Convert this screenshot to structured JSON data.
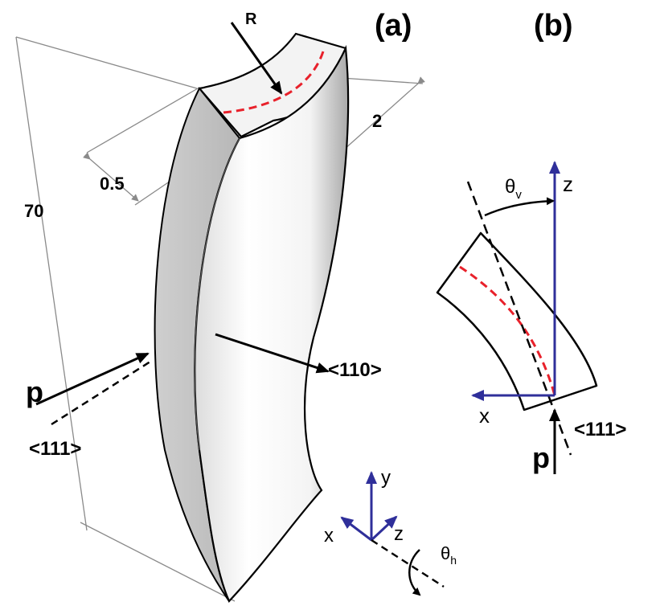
{
  "panel_a": {
    "label": "(a)",
    "radius_label": "R",
    "dim_length": "70",
    "dim_width": "2",
    "dim_thickness": "0.5",
    "beam_label": "p",
    "beam_direction": "<111>",
    "face_direction": "<110>",
    "axes": {
      "y": "y",
      "x": "x",
      "z": "z"
    },
    "rotation_label": "θh",
    "rotation_main": "θ",
    "rotation_sub": "h"
  },
  "panel_b": {
    "label": "(b)",
    "axes": {
      "z": "z",
      "x": "x"
    },
    "angle_main": "θ",
    "angle_sub": "v",
    "beam_label": "p",
    "beam_direction": "<111>"
  },
  "colors": {
    "crystal_fill": "#e6e6e6",
    "red_dashed": "#e8212b",
    "axis_blue": "#2f2f9a",
    "dimension_gray": "#8a8a8a"
  }
}
